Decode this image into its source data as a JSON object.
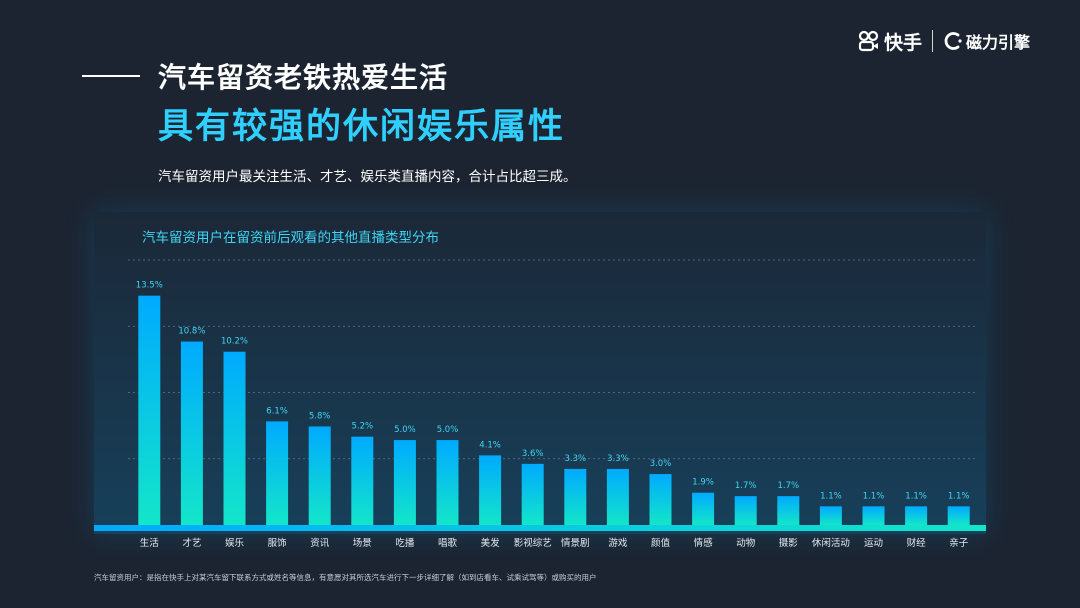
{
  "header": {
    "logo_brand1": "快手",
    "logo_brand2": "磁力引擎",
    "title_line1": "汽车留资老铁热爱生活",
    "title_line2": "具有较强的休闲娱乐属性",
    "subtitle": "汽车留资用户最关注生活、才艺、娱乐类直播内容，合计占比超三成。"
  },
  "colors": {
    "accent": "#2fd0ff",
    "bar_top": "#00aaff",
    "bar_bottom": "#13e6c9",
    "background": "#1c2431"
  },
  "chart_data": {
    "type": "bar",
    "title": "汽车留资用户在留资前后观看的其他直播类型分布",
    "categories": [
      "生活",
      "才艺",
      "娱乐",
      "服饰",
      "资讯",
      "场景",
      "吃播",
      "唱歌",
      "美发",
      "影视综艺",
      "情景剧",
      "游戏",
      "颜值",
      "情感",
      "动物",
      "摄影",
      "休闲活动",
      "运动",
      "财经",
      "亲子"
    ],
    "values": [
      13.5,
      10.8,
      10.2,
      6.1,
      5.8,
      5.2,
      5.0,
      5.0,
      4.1,
      3.6,
      3.3,
      3.3,
      3.0,
      1.9,
      1.7,
      1.7,
      1.1,
      1.1,
      1.1,
      1.1
    ],
    "value_labels": [
      "13.5%",
      "10.8%",
      "10.2%",
      "6.1%",
      "5.8%",
      "5.2%",
      "5.0%",
      "5.0%",
      "4.1%",
      "3.6%",
      "3.3%",
      "3.3%",
      "3.0%",
      "1.9%",
      "1.7%",
      "1.7%",
      "1.1%",
      "1.1%",
      "1.1%",
      "1.1%"
    ],
    "ylim": [
      0,
      15.6
    ],
    "grid": true,
    "xlabel": "",
    "ylabel": ""
  },
  "footnote": "汽车留资用户：是指在快手上对某汽车留下联系方式或姓名等信息，有意愿对其所选汽车进行下一步详细了解（如到店看车、试乘试驾等）或购买的用户"
}
